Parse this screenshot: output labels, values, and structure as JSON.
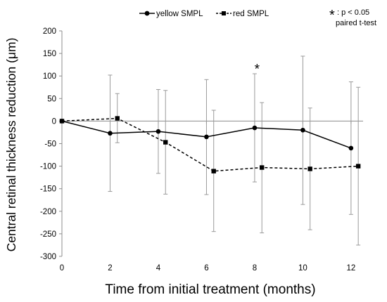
{
  "chart_data": {
    "type": "line",
    "xlabel": "Time from initial treatment (months)",
    "ylabel": "Central retinal thickness reduction (μm)",
    "xlim": [
      0,
      12.5
    ],
    "ylim": [
      -300,
      200
    ],
    "x_ticks": [
      "0",
      "2",
      "4",
      "6",
      "8",
      "10",
      "12"
    ],
    "y_ticks": [
      "200",
      "150",
      "100",
      "50",
      "0",
      "-50",
      "-100",
      "-150",
      "-200",
      "-250",
      "-300"
    ],
    "grid": false,
    "legend_position": "top-center",
    "series": [
      {
        "name": "yellow SMPL",
        "line_style": "solid",
        "marker": "circle",
        "color": "#000000",
        "x": [
          0,
          2,
          4,
          6,
          8,
          10,
          12
        ],
        "y": [
          0,
          -27,
          -23,
          -35,
          -15,
          -20,
          -60
        ],
        "error_upper": [
          0,
          102,
          70,
          92,
          105,
          144,
          87
        ],
        "error_lower": [
          0,
          -156,
          -116,
          -163,
          -135,
          -185,
          -207
        ]
      },
      {
        "name": "red SMPL",
        "line_style": "dashed",
        "marker": "square",
        "color": "#000000",
        "x": [
          0,
          2.3,
          4.3,
          6.3,
          8.3,
          10.3,
          12.3
        ],
        "y": [
          0,
          6,
          -47,
          -111,
          -103,
          -106,
          -100
        ],
        "error_upper": [
          0,
          61,
          68,
          24,
          41,
          29,
          75
        ],
        "error_lower": [
          0,
          -48,
          -162,
          -245,
          -248,
          -241,
          -275
        ]
      }
    ],
    "annotations": [
      {
        "text": "*",
        "x": 8.1,
        "y": 118
      }
    ],
    "note": {
      "symbol": "*",
      "line1": ": p < 0.05",
      "line2": "paired  t-test"
    }
  }
}
